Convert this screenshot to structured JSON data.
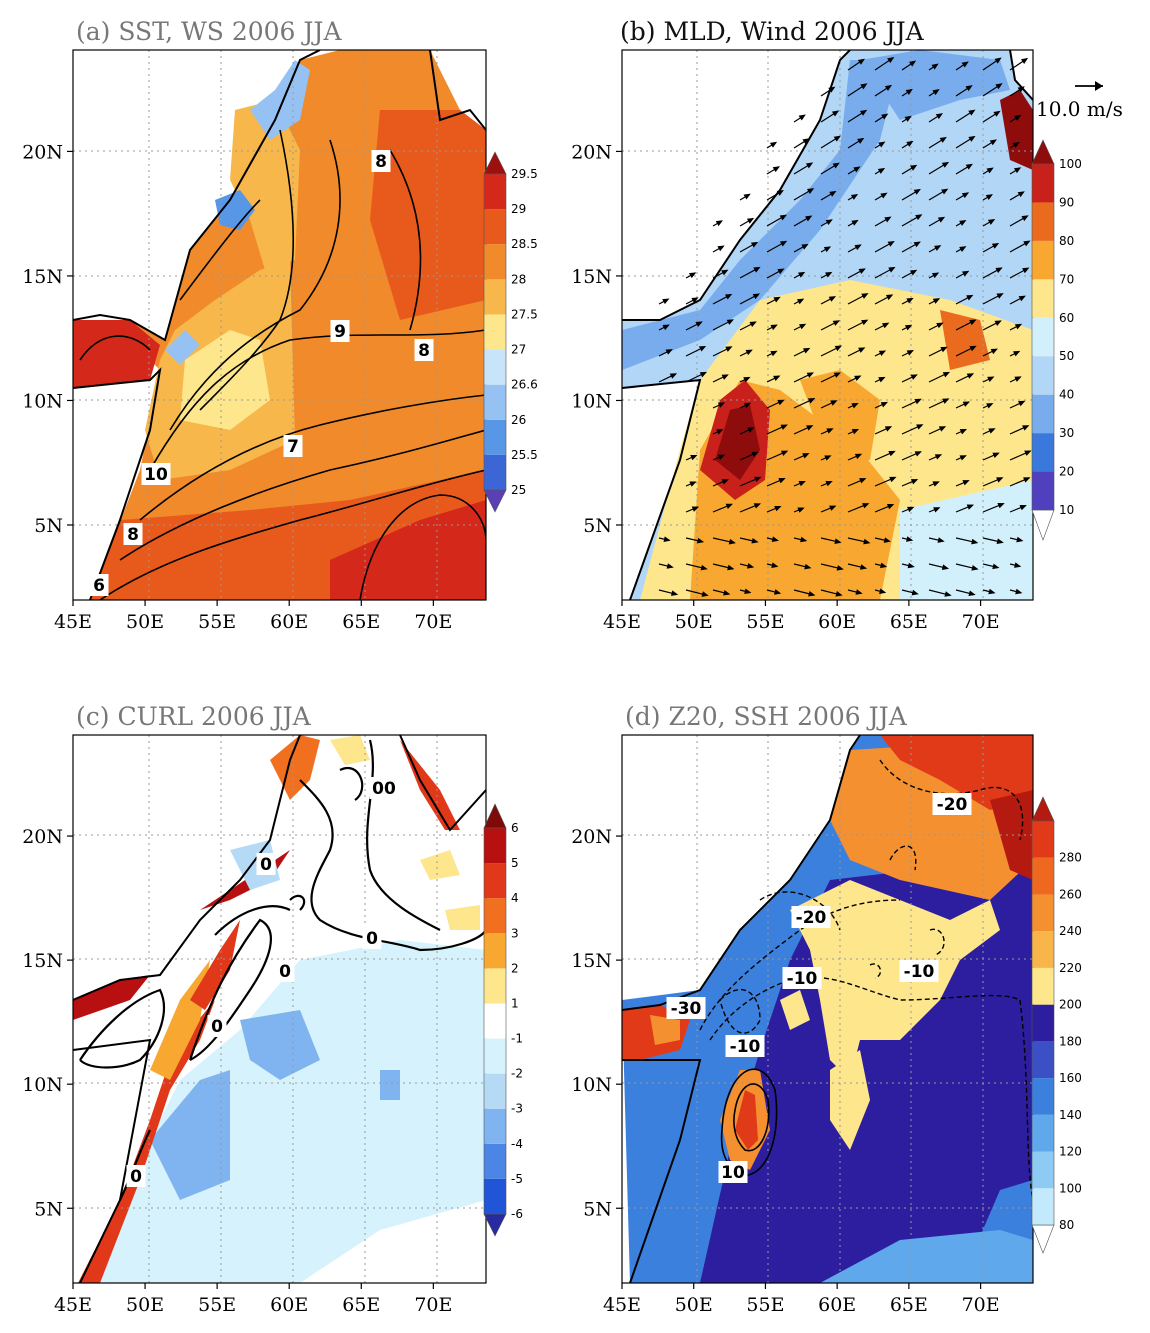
{
  "figure": {
    "panels": [
      {
        "id": "a",
        "title": "(a) SST, WS 2006 JJA",
        "title_active": false,
        "colorbar": {
          "labels": [
            "25",
            "25.5",
            "26",
            "26.6",
            "27",
            "27.5",
            "28",
            "28.5",
            "29",
            "29.5"
          ],
          "colors": [
            "#5a3fb5",
            "#3c65d6",
            "#5896e6",
            "#95c2f2",
            "#c8e4fa",
            "#fde68c",
            "#f8b74a",
            "#f08a2a",
            "#e85a1c",
            "#d4281a",
            "#9e1010"
          ]
        },
        "contour_labels": [
          "8",
          "9",
          "8",
          "7",
          "10",
          "8",
          "6"
        ]
      },
      {
        "id": "b",
        "title": "(b) MLD, Wind 2006 JJA",
        "title_active": true,
        "vector_ref": "10.0 m/s",
        "colorbar": {
          "labels": [
            "10",
            "20",
            "30",
            "40",
            "50",
            "60",
            "70",
            "80",
            "90",
            "100"
          ],
          "colors": [
            "#ffffff",
            "#5140be",
            "#3a78dc",
            "#78acec",
            "#b2d6f6",
            "#d2f0fb",
            "#fde68c",
            "#f8a830",
            "#ea6a1e",
            "#c8201a",
            "#8e0c0c"
          ]
        }
      },
      {
        "id": "c",
        "title": "(c) CURL 2006 JJA",
        "title_active": false,
        "colorbar": {
          "labels": [
            "-6",
            "-5",
            "-4",
            "-3",
            "-2",
            "-1",
            "1",
            "2",
            "3",
            "4",
            "5",
            "6"
          ],
          "colors": [
            "#2a2aa0",
            "#1f55d6",
            "#4b86e6",
            "#80b4f0",
            "#b4daf6",
            "#d6f2fc",
            "#ffffff",
            "#fde68c",
            "#f8a830",
            "#f07020",
            "#e03818",
            "#b81010",
            "#7e0a0a"
          ]
        },
        "contour_labels": [
          "0",
          "00",
          "0",
          "0",
          "0",
          "0"
        ]
      },
      {
        "id": "d",
        "title": "(d) Z20, SSH 2006 JJA",
        "title_active": false,
        "colorbar": {
          "labels": [
            "80",
            "100",
            "120",
            "140",
            "160",
            "180",
            "200",
            "220",
            "240",
            "260",
            "280"
          ],
          "colors": [
            "#ffffff",
            "#c2eafc",
            "#8ecbf4",
            "#5fa8ec",
            "#3c80de",
            "#3c50c6",
            "#2c1e9e",
            "#fde68c",
            "#f8b64a",
            "#f49030",
            "#ee6820",
            "#e03a18",
            "#b51a10"
          ]
        },
        "contour_labels": [
          "-20",
          "-20",
          "-10",
          "-10",
          "-30",
          "-10",
          "10"
        ]
      }
    ],
    "lon_ticks": [
      "45E",
      "50E",
      "55E",
      "60E",
      "65E",
      "70E"
    ],
    "lat_ticks": [
      "5N",
      "10N",
      "15N",
      "20N"
    ]
  }
}
